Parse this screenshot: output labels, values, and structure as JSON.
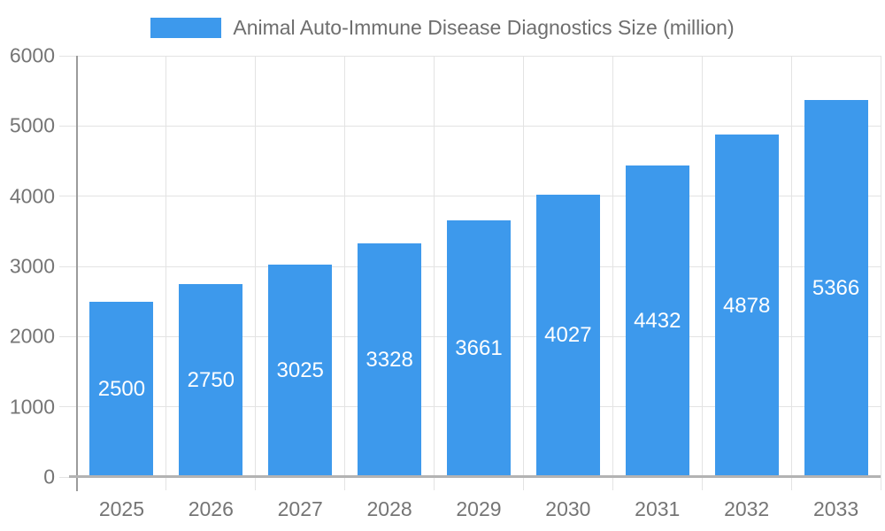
{
  "chart_data": {
    "type": "bar",
    "title": "Animal Auto-Immune Disease Diagnostics Size (million)",
    "categories": [
      "2025",
      "2026",
      "2027",
      "2028",
      "2029",
      "2030",
      "2031",
      "2032",
      "2033"
    ],
    "values": [
      2500,
      2750,
      3025,
      3328,
      3661,
      4027,
      4432,
      4878,
      5366
    ],
    "xlabel": "",
    "ylabel": "",
    "ylim": [
      0,
      6000
    ],
    "ytick_step": 1000,
    "ytick_labels": [
      "0",
      "1000",
      "2000",
      "3000",
      "4000",
      "5000",
      "6000"
    ],
    "grid": true,
    "legend_position": "top",
    "value_label_position": "inside-center",
    "colors": {
      "bar": "#3D99EC",
      "value_label": "#FFFFFF",
      "axis_text": "#757575",
      "legend_text": "#6E6E6E",
      "gridline": "#E3E3E3",
      "axis_line": "#9B9B9B",
      "baseline": "#B3B3B3",
      "background": "#FFFFFF"
    }
  }
}
